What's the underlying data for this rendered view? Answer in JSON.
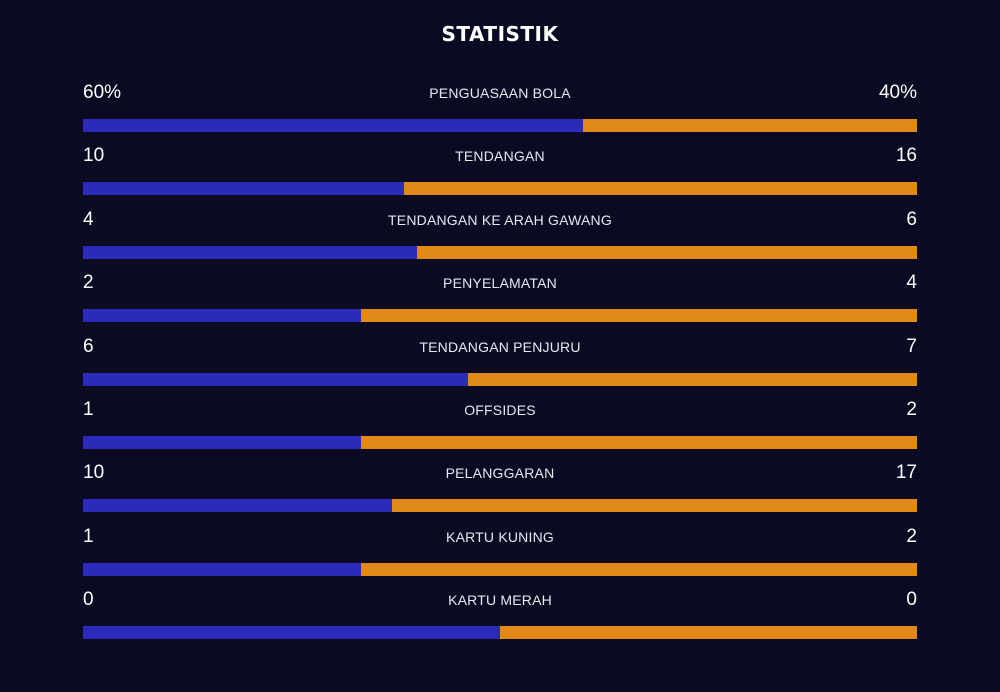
{
  "title": "STATISTIK",
  "colors": {
    "background": "#0a0a22",
    "home_bar": "#2a2bb8",
    "away_bar": "#e08918",
    "text": "#ffffff"
  },
  "stats": [
    {
      "label": "PENGUASAAN BOLA",
      "left": "60%",
      "right": "40%",
      "left_share": 0.6
    },
    {
      "label": "TENDANGAN",
      "left": "10",
      "right": "16",
      "left_share": 0.385
    },
    {
      "label": "TENDANGAN KE ARAH GAWANG",
      "left": "4",
      "right": "6",
      "left_share": 0.4
    },
    {
      "label": "PENYELAMATAN",
      "left": "2",
      "right": "4",
      "left_share": 0.333
    },
    {
      "label": "TENDANGAN PENJURU",
      "left": "6",
      "right": "7",
      "left_share": 0.462
    },
    {
      "label": "OFFSIDES",
      "left": "1",
      "right": "2",
      "left_share": 0.333
    },
    {
      "label": "PELANGGARAN",
      "left": "10",
      "right": "17",
      "left_share": 0.37
    },
    {
      "label": "KARTU KUNING",
      "left": "1",
      "right": "2",
      "left_share": 0.333
    },
    {
      "label": "KARTU MERAH",
      "left": "0",
      "right": "0",
      "left_share": 0.5
    }
  ]
}
